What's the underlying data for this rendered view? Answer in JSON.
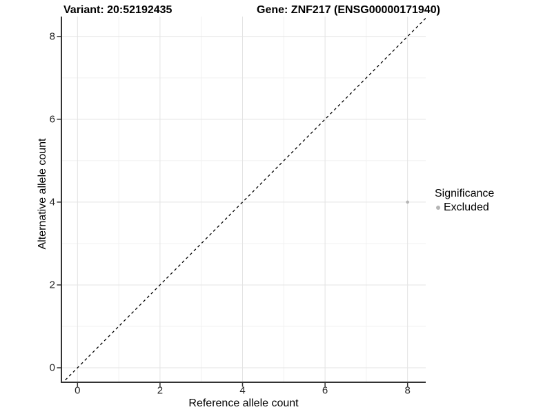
{
  "header": {
    "variant_title": "Variant: 20:52192435",
    "gene_title": "Gene: ZNF217 (ENSG00000171940)"
  },
  "chart_data": {
    "type": "scatter",
    "title": "Variant: 20:52192435  /  Gene: ZNF217 (ENSG00000171940)",
    "xlabel": "Reference allele count",
    "ylabel": "Alternative allele count",
    "x_ticks": [
      0,
      2,
      4,
      6,
      8
    ],
    "y_ticks": [
      0,
      2,
      4,
      6,
      8
    ],
    "x_minor_ticks": [
      1,
      3,
      5,
      7
    ],
    "y_minor_ticks": [
      1,
      3,
      5,
      7
    ],
    "xlim": [
      -0.39,
      8.44
    ],
    "ylim": [
      -0.35,
      8.48
    ],
    "grid": "major-and-minor",
    "points": [
      {
        "x": 8,
        "y": 4,
        "series": "Excluded"
      }
    ],
    "reference_line": {
      "type": "identity y=x",
      "style": "dashed",
      "from": [
        -0.39,
        -0.39
      ],
      "to": [
        8.44,
        8.44
      ]
    },
    "legend": {
      "title": "Significance",
      "position": "right",
      "items": [
        {
          "label": "Excluded",
          "color": "#b5b5b5"
        }
      ]
    }
  },
  "style": {
    "background": "#ffffff",
    "grid_major": "#e3e3e3",
    "grid_minor": "#f1f1f1",
    "axis_line": "#333333",
    "tick_mark": "#333333",
    "ref_line": "#000000",
    "point_excluded": "#b5b5b5",
    "text": "#000000"
  }
}
